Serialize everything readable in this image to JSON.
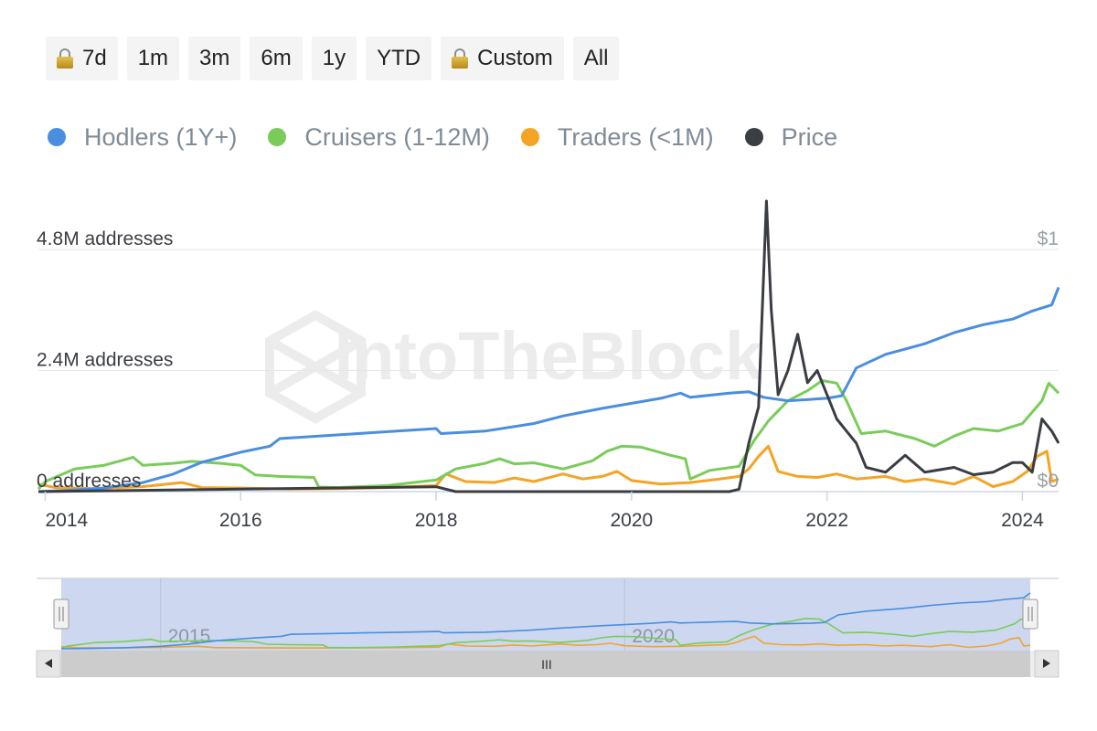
{
  "range_buttons": [
    {
      "label": "7d",
      "locked": true
    },
    {
      "label": "1m",
      "locked": false
    },
    {
      "label": "3m",
      "locked": false
    },
    {
      "label": "6m",
      "locked": false
    },
    {
      "label": "1y",
      "locked": false
    },
    {
      "label": "YTD",
      "locked": false
    },
    {
      "label": "Custom",
      "locked": true
    },
    {
      "label": "All",
      "locked": false
    }
  ],
  "watermark": "IntoTheBlock",
  "navigator": {
    "tick_labels": [
      "2015",
      "2020"
    ],
    "scroll_grip": "III"
  },
  "colors": {
    "hodlers": "#4a8ee0",
    "cruisers": "#7acc5a",
    "traders": "#f4a425",
    "price": "#3a3d42"
  },
  "chart_data": {
    "type": "line",
    "title": "",
    "xlabel": "",
    "ylabel": "",
    "x_range": [
      2013.93,
      2024.37
    ],
    "x_ticks": [
      "2014",
      "2016",
      "2018",
      "2020",
      "2022",
      "2024"
    ],
    "y_left": {
      "range": [
        0,
        4800000
      ],
      "tick_labels": [
        "4.8M addresses",
        "2.4M addresses",
        "0 addresses"
      ]
    },
    "y_right": {
      "range": [
        0,
        1
      ],
      "tick_labels": [
        "$1",
        "$0"
      ]
    },
    "grid": true,
    "legend": "top-left",
    "series": [
      {
        "name": "Hodlers (1Y+)",
        "axis": "left",
        "color": "#4a8ee0",
        "points": [
          [
            2013.93,
            0
          ],
          [
            2014.2,
            20000
          ],
          [
            2014.6,
            70000
          ],
          [
            2015.0,
            180000
          ],
          [
            2015.3,
            340000
          ],
          [
            2015.6,
            580000
          ],
          [
            2016.0,
            780000
          ],
          [
            2016.3,
            900000
          ],
          [
            2016.4,
            1050000
          ],
          [
            2016.8,
            1100000
          ],
          [
            2017.2,
            1150000
          ],
          [
            2017.6,
            1200000
          ],
          [
            2018.0,
            1250000
          ],
          [
            2018.05,
            1150000
          ],
          [
            2018.5,
            1200000
          ],
          [
            2019.0,
            1350000
          ],
          [
            2019.3,
            1500000
          ],
          [
            2019.7,
            1650000
          ],
          [
            2020.0,
            1750000
          ],
          [
            2020.3,
            1850000
          ],
          [
            2020.5,
            1950000
          ],
          [
            2020.6,
            1870000
          ],
          [
            2021.0,
            1950000
          ],
          [
            2021.2,
            1980000
          ],
          [
            2021.35,
            1870000
          ],
          [
            2021.6,
            1800000
          ],
          [
            2022.0,
            1850000
          ],
          [
            2022.15,
            1900000
          ],
          [
            2022.3,
            2450000
          ],
          [
            2022.6,
            2720000
          ],
          [
            2023.0,
            2930000
          ],
          [
            2023.3,
            3150000
          ],
          [
            2023.6,
            3310000
          ],
          [
            2023.9,
            3420000
          ],
          [
            2024.1,
            3580000
          ],
          [
            2024.3,
            3700000
          ],
          [
            2024.37,
            4050000
          ]
        ]
      },
      {
        "name": "Cruisers (1-12M)",
        "axis": "left",
        "color": "#7acc5a",
        "points": [
          [
            2013.93,
            50000
          ],
          [
            2014.0,
            200000
          ],
          [
            2014.3,
            450000
          ],
          [
            2014.6,
            520000
          ],
          [
            2014.9,
            680000
          ],
          [
            2015.0,
            520000
          ],
          [
            2015.3,
            560000
          ],
          [
            2015.5,
            600000
          ],
          [
            2015.8,
            560000
          ],
          [
            2016.0,
            520000
          ],
          [
            2016.15,
            330000
          ],
          [
            2016.4,
            300000
          ],
          [
            2016.75,
            280000
          ],
          [
            2016.8,
            90000
          ],
          [
            2017.0,
            80000
          ],
          [
            2017.5,
            120000
          ],
          [
            2018.0,
            230000
          ],
          [
            2018.2,
            450000
          ],
          [
            2018.5,
            560000
          ],
          [
            2018.65,
            650000
          ],
          [
            2018.8,
            550000
          ],
          [
            2019.0,
            570000
          ],
          [
            2019.3,
            450000
          ],
          [
            2019.6,
            610000
          ],
          [
            2019.75,
            800000
          ],
          [
            2019.9,
            900000
          ],
          [
            2020.1,
            880000
          ],
          [
            2020.4,
            720000
          ],
          [
            2020.55,
            650000
          ],
          [
            2020.6,
            250000
          ],
          [
            2020.8,
            420000
          ],
          [
            2021.1,
            500000
          ],
          [
            2021.25,
            1000000
          ],
          [
            2021.4,
            1400000
          ],
          [
            2021.6,
            1800000
          ],
          [
            2021.8,
            2000000
          ],
          [
            2021.95,
            2200000
          ],
          [
            2022.1,
            2150000
          ],
          [
            2022.2,
            1800000
          ],
          [
            2022.35,
            1150000
          ],
          [
            2022.6,
            1200000
          ],
          [
            2022.9,
            1050000
          ],
          [
            2023.1,
            900000
          ],
          [
            2023.3,
            1100000
          ],
          [
            2023.5,
            1250000
          ],
          [
            2023.75,
            1200000
          ],
          [
            2024.0,
            1350000
          ],
          [
            2024.2,
            1800000
          ],
          [
            2024.27,
            2150000
          ],
          [
            2024.37,
            1950000
          ]
        ]
      },
      {
        "name": "Traders (<1M)",
        "axis": "left",
        "color": "#f4a425",
        "points": [
          [
            2013.93,
            150000
          ],
          [
            2014.1,
            80000
          ],
          [
            2014.5,
            60000
          ],
          [
            2015.0,
            100000
          ],
          [
            2015.4,
            180000
          ],
          [
            2015.6,
            80000
          ],
          [
            2016.0,
            70000
          ],
          [
            2016.5,
            50000
          ],
          [
            2017.0,
            60000
          ],
          [
            2017.5,
            80000
          ],
          [
            2018.0,
            120000
          ],
          [
            2018.1,
            350000
          ],
          [
            2018.3,
            200000
          ],
          [
            2018.6,
            180000
          ],
          [
            2018.8,
            270000
          ],
          [
            2019.0,
            200000
          ],
          [
            2019.3,
            350000
          ],
          [
            2019.5,
            250000
          ],
          [
            2019.7,
            300000
          ],
          [
            2019.85,
            400000
          ],
          [
            2020.0,
            220000
          ],
          [
            2020.3,
            150000
          ],
          [
            2020.6,
            180000
          ],
          [
            2020.9,
            250000
          ],
          [
            2021.1,
            300000
          ],
          [
            2021.2,
            450000
          ],
          [
            2021.3,
            700000
          ],
          [
            2021.4,
            900000
          ],
          [
            2021.5,
            400000
          ],
          [
            2021.7,
            300000
          ],
          [
            2021.9,
            280000
          ],
          [
            2022.1,
            350000
          ],
          [
            2022.3,
            250000
          ],
          [
            2022.6,
            300000
          ],
          [
            2022.8,
            200000
          ],
          [
            2023.0,
            250000
          ],
          [
            2023.3,
            150000
          ],
          [
            2023.5,
            300000
          ],
          [
            2023.7,
            100000
          ],
          [
            2023.9,
            200000
          ],
          [
            2024.05,
            400000
          ],
          [
            2024.15,
            700000
          ],
          [
            2024.25,
            800000
          ],
          [
            2024.3,
            200000
          ],
          [
            2024.37,
            250000
          ]
        ]
      },
      {
        "name": "Price",
        "axis": "right",
        "color": "#3a3d42",
        "points": [
          [
            2013.93,
            0.0
          ],
          [
            2018.0,
            0.02
          ],
          [
            2018.2,
            0.0
          ],
          [
            2021.0,
            0.0
          ],
          [
            2021.1,
            0.01
          ],
          [
            2021.2,
            0.2
          ],
          [
            2021.3,
            0.35
          ],
          [
            2021.38,
            1.2
          ],
          [
            2021.43,
            0.75
          ],
          [
            2021.5,
            0.4
          ],
          [
            2021.6,
            0.5
          ],
          [
            2021.7,
            0.65
          ],
          [
            2021.8,
            0.45
          ],
          [
            2021.9,
            0.5
          ],
          [
            2022.0,
            0.4
          ],
          [
            2022.1,
            0.3
          ],
          [
            2022.2,
            0.25
          ],
          [
            2022.3,
            0.2
          ],
          [
            2022.4,
            0.1
          ],
          [
            2022.6,
            0.08
          ],
          [
            2022.8,
            0.15
          ],
          [
            2023.0,
            0.08
          ],
          [
            2023.3,
            0.1
          ],
          [
            2023.5,
            0.07
          ],
          [
            2023.7,
            0.08
          ],
          [
            2023.9,
            0.12
          ],
          [
            2024.0,
            0.12
          ],
          [
            2024.1,
            0.08
          ],
          [
            2024.2,
            0.3
          ],
          [
            2024.3,
            0.25
          ],
          [
            2024.37,
            0.2
          ]
        ]
      }
    ]
  }
}
